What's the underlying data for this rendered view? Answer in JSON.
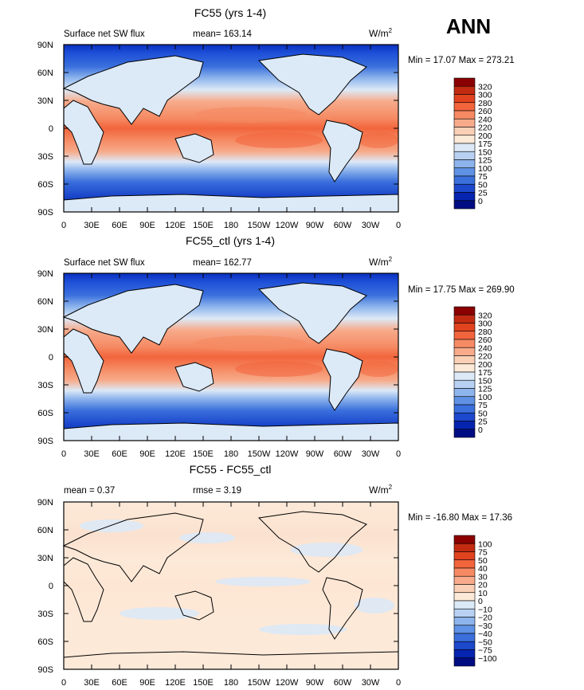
{
  "figure": {
    "season": "ANN",
    "unit_prefix": "W/m",
    "unit_exp": "2"
  },
  "chart_data": [
    {
      "type": "heatmap",
      "kind": "field",
      "title": "FC55 (yrs 1-4)",
      "left_label": "Surface net SW flux",
      "stat_text": "mean= 163.14",
      "minmax_text": "Min =  17.07 Max = 273.21",
      "min": 17.07,
      "max": 273.21,
      "mean": 163.14,
      "xlim": [
        0,
        360
      ],
      "ylim": [
        -90,
        90
      ],
      "x_ticks": [
        "0",
        "30E",
        "60E",
        "90E",
        "120E",
        "150E",
        "180",
        "150W",
        "120W",
        "90W",
        "60W",
        "30W",
        "0"
      ],
      "y_ticks": [
        "90N",
        "60N",
        "30N",
        "0",
        "30S",
        "60S",
        "90S"
      ],
      "colorbar_levels": [
        "320",
        "300",
        "280",
        "260",
        "240",
        "220",
        "200",
        "175",
        "150",
        "125",
        "100",
        "75",
        "50",
        "25",
        "0"
      ],
      "colorbar_colors": [
        "#8b0000",
        "#c22b11",
        "#e0431e",
        "#f2653c",
        "#f58a63",
        "#f7ab8b",
        "#fad0b6",
        "#fde9d8",
        "#dce9f7",
        "#b8d1f2",
        "#8db4ec",
        "#5f92e4",
        "#3a6fdc",
        "#1c48cc",
        "#0524b0",
        "#000d82"
      ]
    },
    {
      "type": "heatmap",
      "kind": "field",
      "title": "FC55_ctl (yrs 1-4)",
      "left_label": "Surface net SW flux",
      "stat_text": "mean= 162.77",
      "minmax_text": "Min =  17.75 Max = 269.90",
      "min": 17.75,
      "max": 269.9,
      "mean": 162.77,
      "xlim": [
        0,
        360
      ],
      "ylim": [
        -90,
        90
      ],
      "x_ticks": [
        "0",
        "30E",
        "60E",
        "90E",
        "120E",
        "150E",
        "180",
        "150W",
        "120W",
        "90W",
        "60W",
        "30W",
        "0"
      ],
      "y_ticks": [
        "90N",
        "60N",
        "30N",
        "0",
        "30S",
        "60S",
        "90S"
      ],
      "colorbar_levels": [
        "320",
        "300",
        "280",
        "260",
        "240",
        "220",
        "200",
        "175",
        "150",
        "125",
        "100",
        "75",
        "50",
        "25",
        "0"
      ],
      "colorbar_colors": [
        "#8b0000",
        "#c22b11",
        "#e0431e",
        "#f2653c",
        "#f58a63",
        "#f7ab8b",
        "#fad0b6",
        "#fde9d8",
        "#dce9f7",
        "#b8d1f2",
        "#8db4ec",
        "#5f92e4",
        "#3a6fdc",
        "#1c48cc",
        "#0524b0",
        "#000d82"
      ]
    },
    {
      "type": "heatmap",
      "kind": "diff",
      "title": "FC55 - FC55_ctl",
      "left_label": "mean =   0.37",
      "stat_text": "rmse =   3.19",
      "minmax_text": "Min = -16.80 Max =  17.36",
      "min": -16.8,
      "max": 17.36,
      "mean": 0.37,
      "rmse": 3.19,
      "xlim": [
        0,
        360
      ],
      "ylim": [
        -90,
        90
      ],
      "x_ticks": [
        "0",
        "30E",
        "60E",
        "90E",
        "120E",
        "150E",
        "180",
        "150W",
        "120W",
        "90W",
        "60W",
        "30W",
        "0"
      ],
      "y_ticks": [
        "90N",
        "60N",
        "30N",
        "0",
        "30S",
        "60S",
        "90S"
      ],
      "colorbar_levels": [
        "100",
        "75",
        "50",
        "40",
        "30",
        "20",
        "10",
        "0",
        "−10",
        "−20",
        "−30",
        "−40",
        "−50",
        "−75",
        "−100"
      ],
      "colorbar_colors": [
        "#8b0000",
        "#c22b11",
        "#e0431e",
        "#f2653c",
        "#f58a63",
        "#f7ab8b",
        "#fad0b6",
        "#fde9d8",
        "#dce9f7",
        "#b8d1f2",
        "#8db4ec",
        "#5f92e4",
        "#3a6fdc",
        "#1c48cc",
        "#0524b0",
        "#000d82"
      ]
    }
  ]
}
